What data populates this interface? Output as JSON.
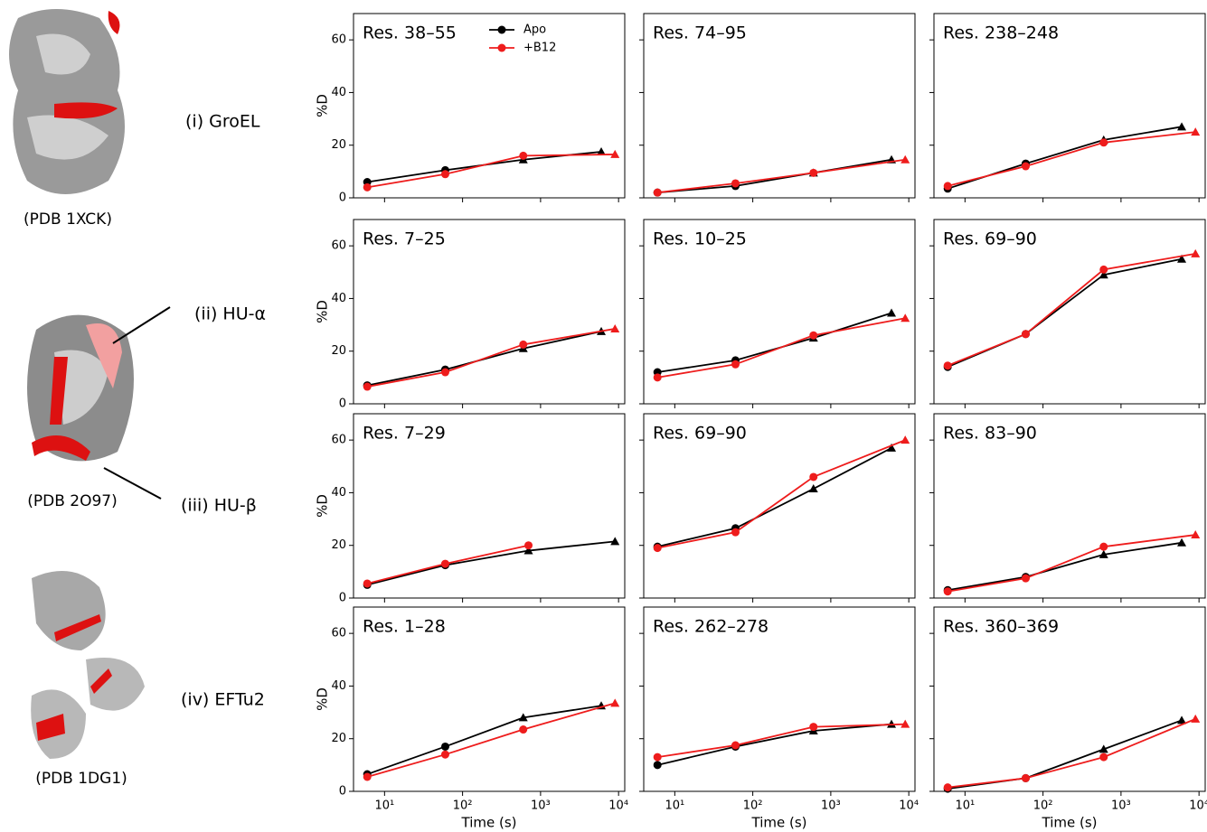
{
  "proteins": [
    "(i) GroEL",
    "(ii) HU-α",
    "(iii) HU-β",
    "(iv) EFTu2"
  ],
  "pdb_labels": [
    "(PDB 1XCK)",
    "(PDB 2O97)",
    "(PDB 1DG1)"
  ],
  "chart_data": [
    {
      "type": "line",
      "title": "Res. 38–55",
      "ylabel": "%D",
      "xscale": "log",
      "xlim": [
        4,
        12000
      ],
      "ylim": [
        0,
        70
      ],
      "xticks": [
        {
          "value": 10,
          "label": "10¹"
        },
        {
          "value": 100,
          "label": "10²"
        },
        {
          "value": 1000,
          "label": "10³"
        },
        {
          "value": 10000,
          "label": "10⁴"
        }
      ],
      "xticklabels": false,
      "yticks": [
        0,
        20,
        40,
        60
      ],
      "yticklabels": true,
      "legend": "upper right",
      "series": [
        {
          "name": "Apo",
          "color": "#000000",
          "markers": "oo^^",
          "x": [
            6,
            60,
            600,
            6000
          ],
          "values": [
            6,
            10.5,
            14.5,
            17.5
          ]
        },
        {
          "name": "+B12",
          "color": "#ee1c1c",
          "markers": "ooo^",
          "x": [
            6,
            60,
            600,
            9000
          ],
          "values": [
            4,
            9,
            16,
            16.5
          ]
        }
      ]
    },
    {
      "type": "line",
      "title": "Res. 74–95",
      "xscale": "log",
      "xlim": [
        4,
        12000
      ],
      "ylim": [
        0,
        70
      ],
      "xticks": [
        {
          "value": 10,
          "label": "10¹"
        },
        {
          "value": 100,
          "label": "10²"
        },
        {
          "value": 1000,
          "label": "10³"
        },
        {
          "value": 10000,
          "label": "10⁴"
        }
      ],
      "xticklabels": false,
      "yticks": [
        0,
        20,
        40,
        60
      ],
      "yticklabels": false,
      "series": [
        {
          "name": "Apo",
          "color": "#000000",
          "markers": "oo^^",
          "x": [
            6,
            60,
            600,
            6000
          ],
          "values": [
            2,
            4.5,
            9.5,
            14.5
          ]
        },
        {
          "name": "+B12",
          "color": "#ee1c1c",
          "markers": "ooo^",
          "x": [
            6,
            60,
            600,
            9000
          ],
          "values": [
            2,
            5.5,
            9.5,
            14.5
          ]
        }
      ]
    },
    {
      "type": "line",
      "title": "Res. 238–248",
      "xscale": "log",
      "xlim": [
        4,
        12000
      ],
      "ylim": [
        0,
        70
      ],
      "xticks": [
        {
          "value": 10,
          "label": "10¹"
        },
        {
          "value": 100,
          "label": "10²"
        },
        {
          "value": 1000,
          "label": "10³"
        },
        {
          "value": 10000,
          "label": "10⁴"
        }
      ],
      "xticklabels": false,
      "yticks": [
        0,
        20,
        40,
        60
      ],
      "yticklabels": false,
      "series": [
        {
          "name": "Apo",
          "color": "#000000",
          "markers": "oo^^",
          "x": [
            6,
            60,
            600,
            6000
          ],
          "values": [
            3.5,
            13,
            22,
            27
          ]
        },
        {
          "name": "+B12",
          "color": "#ee1c1c",
          "markers": "ooo^",
          "x": [
            6,
            60,
            600,
            9000
          ],
          "values": [
            4.5,
            12,
            21,
            25
          ]
        }
      ]
    },
    {
      "type": "line",
      "title": "Res. 7–25",
      "ylabel": "%D",
      "xscale": "log",
      "xlim": [
        4,
        12000
      ],
      "ylim": [
        0,
        70
      ],
      "xticks": [
        {
          "value": 10,
          "label": "10¹"
        },
        {
          "value": 100,
          "label": "10²"
        },
        {
          "value": 1000,
          "label": "10³"
        },
        {
          "value": 10000,
          "label": "10⁴"
        }
      ],
      "xticklabels": false,
      "yticks": [
        0,
        20,
        40,
        60
      ],
      "yticklabels": true,
      "series": [
        {
          "name": "Apo",
          "color": "#000000",
          "markers": "oo^^",
          "x": [
            6,
            60,
            600,
            6000
          ],
          "values": [
            7,
            13,
            21,
            27.5
          ]
        },
        {
          "name": "+B12",
          "color": "#ee1c1c",
          "markers": "ooo^",
          "x": [
            6,
            60,
            600,
            9000
          ],
          "values": [
            6.5,
            12,
            22.5,
            28.5
          ]
        }
      ]
    },
    {
      "type": "line",
      "title": "Res. 10–25",
      "xscale": "log",
      "xlim": [
        4,
        12000
      ],
      "ylim": [
        0,
        70
      ],
      "xticks": [
        {
          "value": 10,
          "label": "10¹"
        },
        {
          "value": 100,
          "label": "10²"
        },
        {
          "value": 1000,
          "label": "10³"
        },
        {
          "value": 10000,
          "label": "10⁴"
        }
      ],
      "xticklabels": false,
      "yticks": [
        0,
        20,
        40,
        60
      ],
      "yticklabels": false,
      "series": [
        {
          "name": "Apo",
          "color": "#000000",
          "markers": "oo^^",
          "x": [
            6,
            60,
            600,
            6000
          ],
          "values": [
            12,
            16.5,
            25,
            34.5
          ]
        },
        {
          "name": "+B12",
          "color": "#ee1c1c",
          "markers": "ooo^",
          "x": [
            6,
            60,
            600,
            9000
          ],
          "values": [
            10,
            15,
            26,
            32.5
          ]
        }
      ]
    },
    {
      "type": "line",
      "title": "Res. 69–90",
      "xscale": "log",
      "xlim": [
        4,
        12000
      ],
      "ylim": [
        0,
        70
      ],
      "xticks": [
        {
          "value": 10,
          "label": "10¹"
        },
        {
          "value": 100,
          "label": "10²"
        },
        {
          "value": 1000,
          "label": "10³"
        },
        {
          "value": 10000,
          "label": "10⁴"
        }
      ],
      "xticklabels": false,
      "yticks": [
        0,
        20,
        40,
        60
      ],
      "yticklabels": false,
      "series": [
        {
          "name": "Apo",
          "color": "#000000",
          "markers": "oo^^",
          "x": [
            6,
            60,
            600,
            6000
          ],
          "values": [
            14,
            26.5,
            49,
            55
          ]
        },
        {
          "name": "+B12",
          "color": "#ee1c1c",
          "markers": "ooo^",
          "x": [
            6,
            60,
            600,
            9000
          ],
          "values": [
            14.5,
            26.5,
            51,
            57
          ]
        }
      ]
    },
    {
      "type": "line",
      "title": "Res. 7–29",
      "ylabel": "%D",
      "xscale": "log",
      "xlim": [
        4,
        12000
      ],
      "ylim": [
        0,
        70
      ],
      "xticks": [
        {
          "value": 10,
          "label": "10¹"
        },
        {
          "value": 100,
          "label": "10²"
        },
        {
          "value": 1000,
          "label": "10³"
        },
        {
          "value": 10000,
          "label": "10⁴"
        }
      ],
      "xticklabels": false,
      "yticks": [
        0,
        20,
        40,
        60
      ],
      "yticklabels": true,
      "series": [
        {
          "name": "Apo",
          "color": "#000000",
          "markers": "oo^^",
          "x": [
            6,
            60,
            700,
            9000
          ],
          "values": [
            5,
            12.5,
            18,
            21.5
          ]
        },
        {
          "name": "+B12",
          "color": "#ee1c1c",
          "markers": "ooo",
          "x": [
            6,
            60,
            700
          ],
          "values": [
            5.5,
            13,
            20
          ]
        }
      ]
    },
    {
      "type": "line",
      "title": "Res. 69–90",
      "xscale": "log",
      "xlim": [
        4,
        12000
      ],
      "ylim": [
        0,
        70
      ],
      "xticks": [
        {
          "value": 10,
          "label": "10¹"
        },
        {
          "value": 100,
          "label": "10²"
        },
        {
          "value": 1000,
          "label": "10³"
        },
        {
          "value": 10000,
          "label": "10⁴"
        }
      ],
      "xticklabels": false,
      "yticks": [
        0,
        20,
        40,
        60
      ],
      "yticklabels": false,
      "series": [
        {
          "name": "Apo",
          "color": "#000000",
          "markers": "oo^^",
          "x": [
            6,
            60,
            600,
            6000
          ],
          "values": [
            19.5,
            26.5,
            41.5,
            57
          ]
        },
        {
          "name": "+B12",
          "color": "#ee1c1c",
          "markers": "ooo^",
          "x": [
            6,
            60,
            600,
            9000
          ],
          "values": [
            19,
            25,
            46,
            60
          ]
        }
      ]
    },
    {
      "type": "line",
      "title": "Res. 83–90",
      "xscale": "log",
      "xlim": [
        4,
        12000
      ],
      "ylim": [
        0,
        70
      ],
      "xticks": [
        {
          "value": 10,
          "label": "10¹"
        },
        {
          "value": 100,
          "label": "10²"
        },
        {
          "value": 1000,
          "label": "10³"
        },
        {
          "value": 10000,
          "label": "10⁴"
        }
      ],
      "xticklabels": false,
      "yticks": [
        0,
        20,
        40,
        60
      ],
      "yticklabels": false,
      "series": [
        {
          "name": "Apo",
          "color": "#000000",
          "markers": "oo^^",
          "x": [
            6,
            60,
            600,
            6000
          ],
          "values": [
            3,
            8,
            16.5,
            21
          ]
        },
        {
          "name": "+B12",
          "color": "#ee1c1c",
          "markers": "ooo^",
          "x": [
            6,
            60,
            600,
            9000
          ],
          "values": [
            2.5,
            7.5,
            19.5,
            24
          ]
        }
      ]
    },
    {
      "type": "line",
      "title": "Res. 1–28",
      "ylabel": "%D",
      "xlabel": "Time (s)",
      "xscale": "log",
      "xlim": [
        4,
        12000
      ],
      "ylim": [
        0,
        70
      ],
      "xticks": [
        {
          "value": 10,
          "label": "10¹"
        },
        {
          "value": 100,
          "label": "10²"
        },
        {
          "value": 1000,
          "label": "10³"
        },
        {
          "value": 10000,
          "label": "10⁴"
        }
      ],
      "xticklabels": true,
      "yticks": [
        0,
        20,
        40,
        60
      ],
      "yticklabels": true,
      "series": [
        {
          "name": "Apo",
          "color": "#000000",
          "markers": "oo^^",
          "x": [
            6,
            60,
            600,
            6000
          ],
          "values": [
            6.5,
            17,
            28,
            32.5
          ]
        },
        {
          "name": "+B12",
          "color": "#ee1c1c",
          "markers": "ooo^",
          "x": [
            6,
            60,
            600,
            9000
          ],
          "values": [
            5.5,
            14,
            23.5,
            33.5
          ]
        }
      ]
    },
    {
      "type": "line",
      "title": "Res. 262–278",
      "xlabel": "Time (s)",
      "xscale": "log",
      "xlim": [
        4,
        12000
      ],
      "ylim": [
        0,
        70
      ],
      "xticks": [
        {
          "value": 10,
          "label": "10¹"
        },
        {
          "value": 100,
          "label": "10²"
        },
        {
          "value": 1000,
          "label": "10³"
        },
        {
          "value": 10000,
          "label": "10⁴"
        }
      ],
      "xticklabels": true,
      "yticks": [
        0,
        20,
        40,
        60
      ],
      "yticklabels": false,
      "series": [
        {
          "name": "Apo",
          "color": "#000000",
          "markers": "oo^^",
          "x": [
            6,
            60,
            600,
            6000
          ],
          "values": [
            10,
            17,
            23,
            25.5
          ]
        },
        {
          "name": "+B12",
          "color": "#ee1c1c",
          "markers": "ooo^",
          "x": [
            6,
            60,
            600,
            9000
          ],
          "values": [
            13,
            17.5,
            24.5,
            25.5
          ]
        }
      ]
    },
    {
      "type": "line",
      "title": "Res. 360–369",
      "xlabel": "Time (s)",
      "xscale": "log",
      "xlim": [
        4,
        12000
      ],
      "ylim": [
        0,
        70
      ],
      "xticks": [
        {
          "value": 10,
          "label": "10¹"
        },
        {
          "value": 100,
          "label": "10²"
        },
        {
          "value": 1000,
          "label": "10³"
        },
        {
          "value": 10000,
          "label": "10⁴"
        }
      ],
      "xticklabels": true,
      "yticks": [
        0,
        20,
        40,
        60
      ],
      "yticklabels": false,
      "series": [
        {
          "name": "Apo",
          "color": "#000000",
          "markers": "oo^^",
          "x": [
            6,
            60,
            600,
            6000
          ],
          "values": [
            1,
            5,
            16,
            27
          ]
        },
        {
          "name": "+B12",
          "color": "#ee1c1c",
          "markers": "ooo^",
          "x": [
            6,
            60,
            600,
            9000
          ],
          "values": [
            1.5,
            5,
            13,
            27.5
          ]
        }
      ]
    }
  ]
}
